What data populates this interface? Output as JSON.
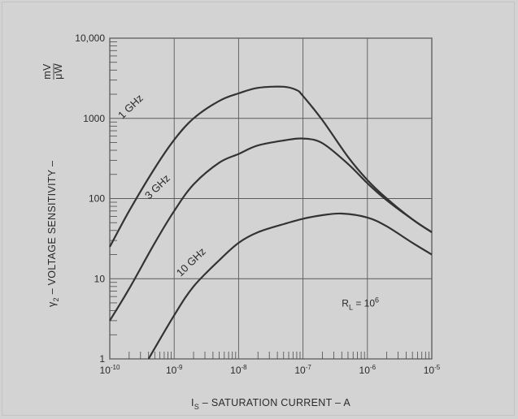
{
  "chart_data": {
    "type": "line",
    "xscale": "log",
    "yscale": "log",
    "xlim": [
      1e-10,
      1e-05
    ],
    "ylim": [
      1,
      10000
    ],
    "grid": true,
    "x_tick_labels": [
      {
        "base": "10",
        "exp": "-10",
        "value": 1e-10
      },
      {
        "base": "10",
        "exp": "-9",
        "value": 1e-09
      },
      {
        "base": "10",
        "exp": "-8",
        "value": 1e-08
      },
      {
        "base": "10",
        "exp": "-7",
        "value": 1e-07
      },
      {
        "base": "10",
        "exp": "-6",
        "value": 1e-06
      },
      {
        "base": "10",
        "exp": "-5",
        "value": 1e-05
      }
    ],
    "y_tick_labels": [
      {
        "text": "1",
        "value": 1
      },
      {
        "text": "10",
        "value": 10
      },
      {
        "text": "100",
        "value": 100
      },
      {
        "text": "1000",
        "value": 1000
      },
      {
        "text": "10,000",
        "value": 10000
      }
    ],
    "xlabel": {
      "main": "I",
      "sub": "S",
      "rest": " – SATURATION CURRENT – A"
    },
    "ylabel": {
      "pre": "γ",
      "sub": "2",
      "rest": " – VOLTAGE SENSITIVITY – ",
      "num": "mV",
      "den": "μW"
    },
    "annotation": {
      "main": "R",
      "sub": "L",
      "eq": " = 10",
      "sup": "6",
      "x": 4e-07,
      "y": 4.5
    },
    "series": [
      {
        "name": "1 GHz",
        "label_at": {
          "x": 2.3e-10,
          "y": 1300
        },
        "points": [
          [
            1e-10,
            25
          ],
          [
            2e-10,
            70
          ],
          [
            5e-10,
            240
          ],
          [
            1e-09,
            540
          ],
          [
            2e-09,
            1000
          ],
          [
            5e-09,
            1650
          ],
          [
            1e-08,
            2050
          ],
          [
            2e-08,
            2400
          ],
          [
            5e-08,
            2480
          ],
          [
            8e-08,
            2250
          ],
          [
            1e-07,
            1900
          ],
          [
            2e-07,
            950
          ],
          [
            5e-07,
            330
          ],
          [
            1e-06,
            170
          ],
          [
            2e-06,
            100
          ],
          [
            5e-06,
            55
          ],
          [
            1e-05,
            38
          ]
        ]
      },
      {
        "name": "3 GHz",
        "label_at": {
          "x": 6e-10,
          "y": 130
        },
        "points": [
          [
            1e-10,
            3
          ],
          [
            2e-10,
            7.5
          ],
          [
            5e-10,
            28
          ],
          [
            1e-09,
            70
          ],
          [
            2e-09,
            150
          ],
          [
            5e-09,
            280
          ],
          [
            1e-08,
            360
          ],
          [
            2e-08,
            460
          ],
          [
            5e-08,
            530
          ],
          [
            1e-07,
            560
          ],
          [
            2e-07,
            490
          ],
          [
            5e-07,
            270
          ],
          [
            1e-06,
            155
          ],
          [
            2e-06,
            95
          ],
          [
            5e-06,
            55
          ],
          [
            1e-05,
            38
          ]
        ]
      },
      {
        "name": "10 GHz",
        "label_at": {
          "x": 2e-09,
          "y": 15
        },
        "points": [
          [
            4e-10,
            1
          ],
          [
            1e-09,
            3.5
          ],
          [
            2e-09,
            8
          ],
          [
            5e-09,
            17
          ],
          [
            1e-08,
            28
          ],
          [
            2e-08,
            38
          ],
          [
            5e-08,
            48
          ],
          [
            1e-07,
            56
          ],
          [
            2e-07,
            62
          ],
          [
            4e-07,
            65
          ],
          [
            1e-06,
            58
          ],
          [
            2e-06,
            45
          ],
          [
            5e-06,
            28
          ],
          [
            1e-05,
            20
          ]
        ]
      }
    ]
  }
}
